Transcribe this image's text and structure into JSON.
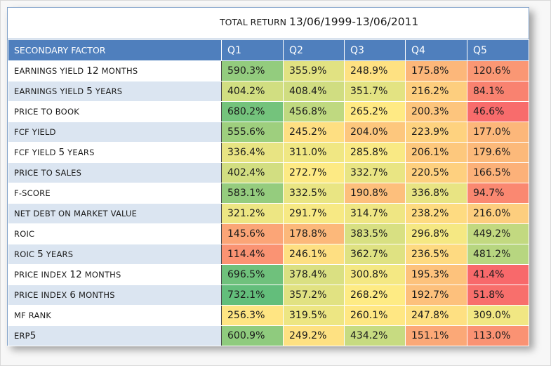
{
  "colors": {
    "header_bg": "#4f7fbd",
    "row_alt_bg": "#dbe5f1",
    "scale_low": "#f8696b",
    "scale_mid": "#ffeb84",
    "scale_high": "#63be7b"
  },
  "chart_data": {
    "type": "table",
    "title": "TOTAL RETURN 13/06/1999-13/06/2011",
    "header_factor": "SECONDARY FACTOR",
    "columns": [
      "Q1",
      "Q2",
      "Q3",
      "Q4",
      "Q5"
    ],
    "color_scale": "three-color conditional formatting (red = low, yellow = mid, green = high)",
    "rows": [
      {
        "factor": "EARNINGS YIELD 12 MONTHS",
        "values": [
          "590.3%",
          "355.9%",
          "248.9%",
          "175.8%",
          "120.6%"
        ],
        "numbers": [
          590.3,
          355.9,
          248.9,
          175.8,
          120.6
        ]
      },
      {
        "factor": "EARNINGS YIELD 5 YEARS",
        "values": [
          "404.2%",
          "408.4%",
          "351.7%",
          "216.2%",
          "84.1%"
        ],
        "numbers": [
          404.2,
          408.4,
          351.7,
          216.2,
          84.1
        ]
      },
      {
        "factor": "PRICE TO BOOK",
        "values": [
          "680.2%",
          "456.8%",
          "265.2%",
          "200.3%",
          "46.6%"
        ],
        "numbers": [
          680.2,
          456.8,
          265.2,
          200.3,
          46.6
        ]
      },
      {
        "factor": "FCF YIELD",
        "values": [
          "555.6%",
          "245.2%",
          "204.0%",
          "223.9%",
          "177.0%"
        ],
        "numbers": [
          555.6,
          245.2,
          204.0,
          223.9,
          177.0
        ]
      },
      {
        "factor": "FCF YIELD 5 YEARS",
        "values": [
          "336.4%",
          "311.0%",
          "285.8%",
          "206.1%",
          "179.6%"
        ],
        "numbers": [
          336.4,
          311.0,
          285.8,
          206.1,
          179.6
        ]
      },
      {
        "factor": "PRICE TO SALES",
        "values": [
          "402.4%",
          "272.7%",
          "332.7%",
          "220.5%",
          "166.5%"
        ],
        "numbers": [
          402.4,
          272.7,
          332.7,
          220.5,
          166.5
        ]
      },
      {
        "factor": "F-SCORE",
        "values": [
          "583.1%",
          "332.5%",
          "190.8%",
          "336.8%",
          "94.7%"
        ],
        "numbers": [
          583.1,
          332.5,
          190.8,
          336.8,
          94.7
        ]
      },
      {
        "factor": "NET DEBT ON MARKET VALUE",
        "values": [
          "321.2%",
          "291.7%",
          "314.7%",
          "238.2%",
          "216.0%"
        ],
        "numbers": [
          321.2,
          291.7,
          314.7,
          238.2,
          216.0
        ]
      },
      {
        "factor": "ROIC",
        "values": [
          "145.6%",
          "178.8%",
          "383.5%",
          "296.8%",
          "449.2%"
        ],
        "numbers": [
          145.6,
          178.8,
          383.5,
          296.8,
          449.2
        ]
      },
      {
        "factor": "ROIC 5 YEARS",
        "values": [
          "114.4%",
          "246.1%",
          "362.7%",
          "236.5%",
          "481.2%"
        ],
        "numbers": [
          114.4,
          246.1,
          362.7,
          236.5,
          481.2
        ]
      },
      {
        "factor": "PRICE INDEX 12 MONTHS",
        "values": [
          "696.5%",
          "378.4%",
          "300.8%",
          "195.3%",
          "41.4%"
        ],
        "numbers": [
          696.5,
          378.4,
          300.8,
          195.3,
          41.4
        ]
      },
      {
        "factor": "PRICE INDEX 6 MONTHS",
        "values": [
          "732.1%",
          "357.2%",
          "268.2%",
          "192.7%",
          "51.8%"
        ],
        "numbers": [
          732.1,
          357.2,
          268.2,
          192.7,
          51.8
        ]
      },
      {
        "factor": "MF RANK",
        "values": [
          "256.3%",
          "319.5%",
          "260.1%",
          "247.8%",
          "309.0%"
        ],
        "numbers": [
          256.3,
          319.5,
          260.1,
          247.8,
          309.0
        ]
      },
      {
        "factor": "ERP5",
        "values": [
          "600.9%",
          "249.2%",
          "434.2%",
          "151.1%",
          "113.0%"
        ],
        "numbers": [
          600.9,
          249.2,
          434.2,
          151.1,
          113.0
        ]
      }
    ]
  }
}
